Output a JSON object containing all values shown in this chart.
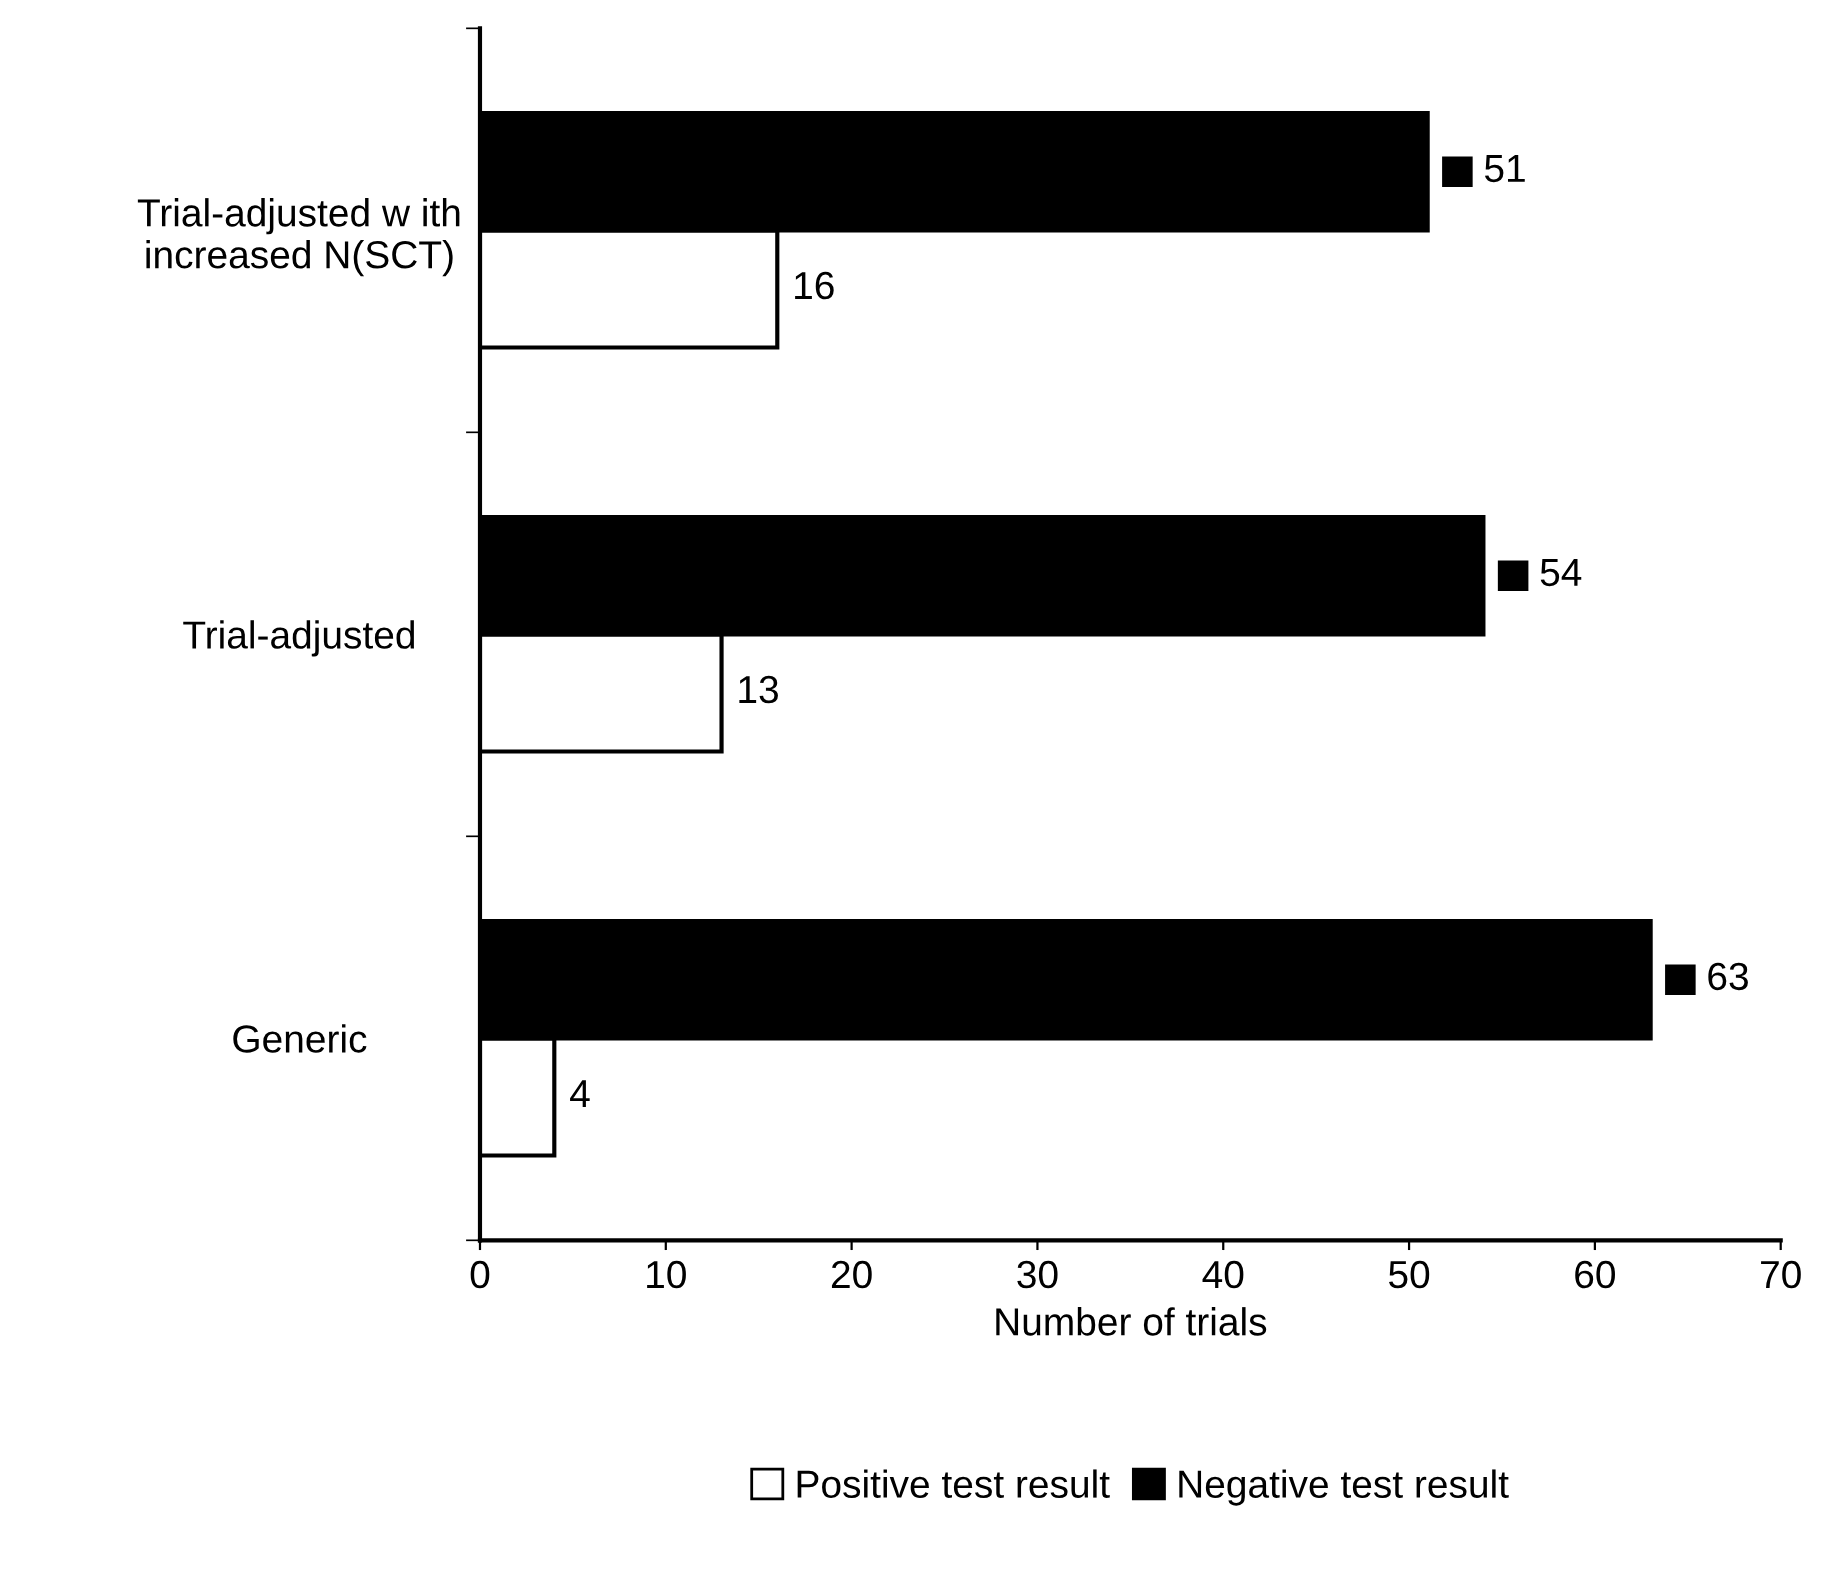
{
  "chart_data": {
    "type": "bar",
    "orientation": "horizontal",
    "xlabel": "Number of trials",
    "categories": [
      "Trial-adjusted w ith\nincreased N(SCT)",
      "Trial-adjusted",
      "Generic"
    ],
    "series": [
      {
        "name": "Positive test result",
        "color": "#ffffff",
        "values": [
          16,
          13,
          4
        ]
      },
      {
        "name": "Negative test result",
        "color": "#000000",
        "values": [
          51,
          54,
          63
        ]
      }
    ],
    "xlim": [
      0,
      70
    ],
    "xticks": [
      0,
      10,
      20,
      30,
      40,
      50,
      60,
      70
    ],
    "data_labels": true,
    "grid": false,
    "legend": "bottom"
  }
}
